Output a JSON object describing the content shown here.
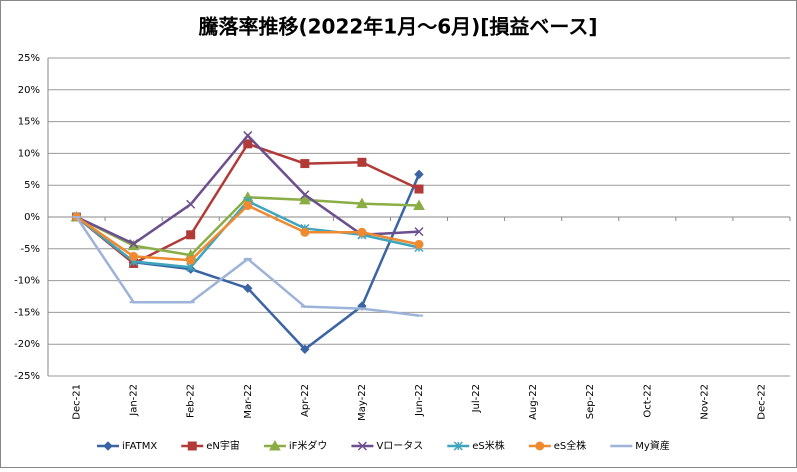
{
  "chart_data": {
    "type": "line",
    "title": "騰落率推移(2022年1月～6月)[損益ベース]",
    "categories": [
      "Dec-21",
      "Jan-22",
      "Feb-22",
      "Mar-22",
      "Apr-22",
      "May-22",
      "Jun-22",
      "Jul-22",
      "Aug-22",
      "Sep-22",
      "Oct-22",
      "Nov-22",
      "Dec-22"
    ],
    "ylim": [
      -25,
      25
    ],
    "yticks": [
      {
        "value": -25,
        "label": "-25%"
      },
      {
        "value": -20,
        "label": "-20%"
      },
      {
        "value": -15,
        "label": "-15%"
      },
      {
        "value": -10,
        "label": "-10%"
      },
      {
        "value": -5,
        "label": "-5%"
      },
      {
        "value": 0,
        "label": "0%"
      },
      {
        "value": 5,
        "label": "5%"
      },
      {
        "value": 10,
        "label": "10%"
      },
      {
        "value": 15,
        "label": "15%"
      },
      {
        "value": 20,
        "label": "20%"
      },
      {
        "value": 25,
        "label": "25%"
      }
    ],
    "grid": true,
    "legend": "bottom",
    "series": [
      {
        "name": "iFATMX",
        "color": "#3b64a4",
        "marker": "diamond",
        "values": [
          0,
          -7.1,
          -8.2,
          -11.2,
          -20.8,
          -14,
          6.7,
          null,
          null,
          null,
          null,
          null,
          null
        ]
      },
      {
        "name": "eN宇宙",
        "color": "#b23b38",
        "marker": "square",
        "values": [
          0,
          -7.3,
          -2.8,
          11.5,
          8.4,
          8.6,
          4.4,
          null,
          null,
          null,
          null,
          null,
          null
        ]
      },
      {
        "name": "iF米ダウ",
        "color": "#8aad45",
        "marker": "triangle",
        "values": [
          0,
          -4.5,
          -6,
          3.1,
          2.7,
          2.1,
          1.8,
          null,
          null,
          null,
          null,
          null,
          null
        ]
      },
      {
        "name": "Vロータス",
        "color": "#6c4f8e",
        "marker": "x",
        "values": [
          0,
          -4.2,
          2,
          12.8,
          3.5,
          -2.8,
          -2.3,
          null,
          null,
          null,
          null,
          null,
          null
        ]
      },
      {
        "name": "eS米株",
        "color": "#3fa5bd",
        "marker": "star",
        "values": [
          0,
          -7,
          -7.9,
          2.5,
          -1.8,
          -2.8,
          -4.8,
          null,
          null,
          null,
          null,
          null,
          null
        ]
      },
      {
        "name": "eS全株",
        "color": "#ef8a30",
        "marker": "circle",
        "values": [
          0,
          -6.2,
          -6.8,
          1.8,
          -2.4,
          -2.4,
          -4.3,
          null,
          null,
          null,
          null,
          null,
          null
        ]
      },
      {
        "name": "My資産",
        "color": "#9db3d8",
        "marker": "dash",
        "values": [
          0,
          -13.4,
          -13.4,
          -6.6,
          -14.1,
          -14.4,
          -15.5,
          null,
          null,
          null,
          null,
          null,
          null
        ]
      }
    ]
  }
}
